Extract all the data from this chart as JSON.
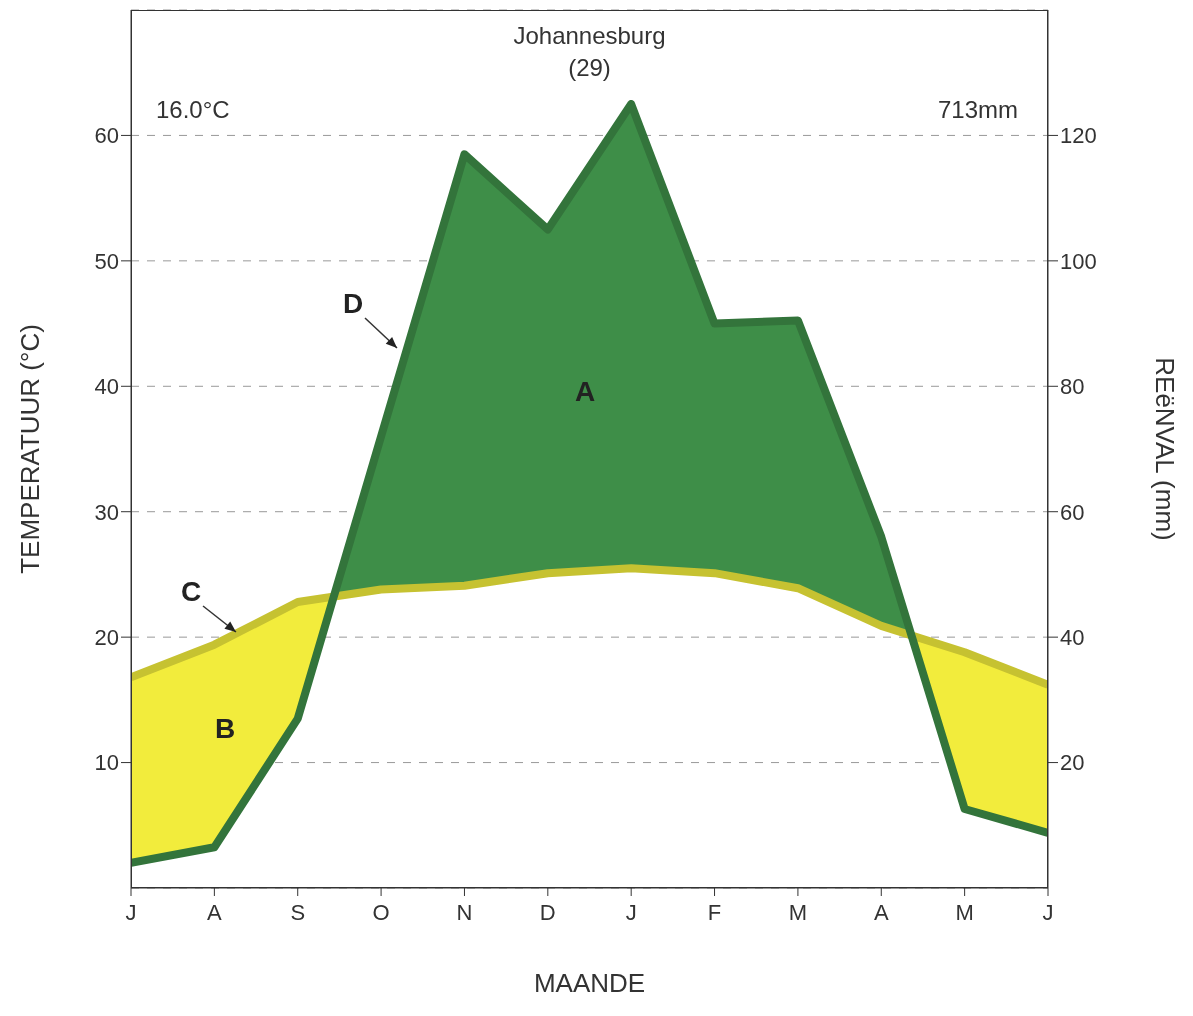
{
  "chart_data": {
    "type": "area",
    "title": "Johannesburg",
    "subtitle": "(29)",
    "xlabel": "MAANDE",
    "ylabel": "TEMPERATUUR (°C)",
    "y2label": "REëNVAL (mm)",
    "categories": [
      "J",
      "A",
      "S",
      "O",
      "N",
      "D",
      "J",
      "F",
      "M",
      "A",
      "M",
      "J"
    ],
    "series": [
      {
        "color": "#f2ec3c",
        "values": [
          16.8,
          19.4,
          22.8,
          23.8,
          24.1,
          25.1,
          25.5,
          25.1,
          23.9,
          20.9,
          18.8,
          16.2
        ]
      },
      {
        "color": "#3e8e48",
        "axis": "y2",
        "values": [
          4,
          6.5,
          27,
          72,
          117,
          105,
          125,
          90,
          90.5,
          56,
          12.6,
          8.8
        ]
      }
    ],
    "ylim": [
      0,
      70
    ],
    "yticks": [
      10,
      20,
      30,
      40,
      50,
      60
    ],
    "y2lim": [
      0,
      140
    ],
    "y2ticks": [
      20,
      40,
      60,
      80,
      100,
      120
    ],
    "grid": "y",
    "annotations": [
      "16.0°C",
      "713mm",
      "A",
      "B",
      "C",
      "D"
    ]
  }
}
